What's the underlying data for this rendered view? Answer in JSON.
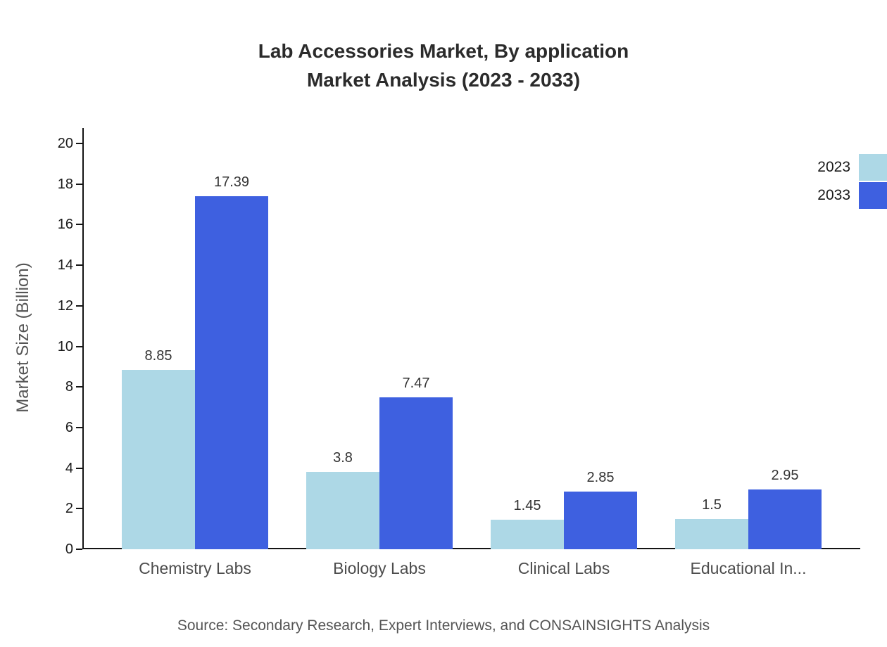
{
  "title": {
    "line1": "Lab Accessories Market, By application",
    "line2": "Market Analysis (2023 - 2033)"
  },
  "source": "Source: Secondary Research, Expert Interviews, and CONSAINSIGHTS Analysis",
  "chart_data": {
    "type": "bar",
    "title": "Lab Accessories Market, By application — Market Analysis (2023 - 2033)",
    "categories": [
      "Chemistry Labs",
      "Biology Labs",
      "Clinical Labs",
      "Educational In..."
    ],
    "series": [
      {
        "name": "2023",
        "color": "#add8e6",
        "values": [
          8.85,
          3.8,
          1.45,
          1.5
        ]
      },
      {
        "name": "2033",
        "color": "#3e60e0",
        "values": [
          17.39,
          7.47,
          2.85,
          2.95
        ]
      }
    ],
    "value_labels": [
      [
        "8.85",
        "3.8",
        "1.45",
        "1.5"
      ],
      [
        "17.39",
        "7.47",
        "2.85",
        "2.95"
      ]
    ],
    "xlabel": "",
    "ylabel": "Market Size (Billion)",
    "ylim": [
      0,
      20
    ],
    "ytick_step": 2,
    "grid": false,
    "legend_position": "top-right"
  }
}
